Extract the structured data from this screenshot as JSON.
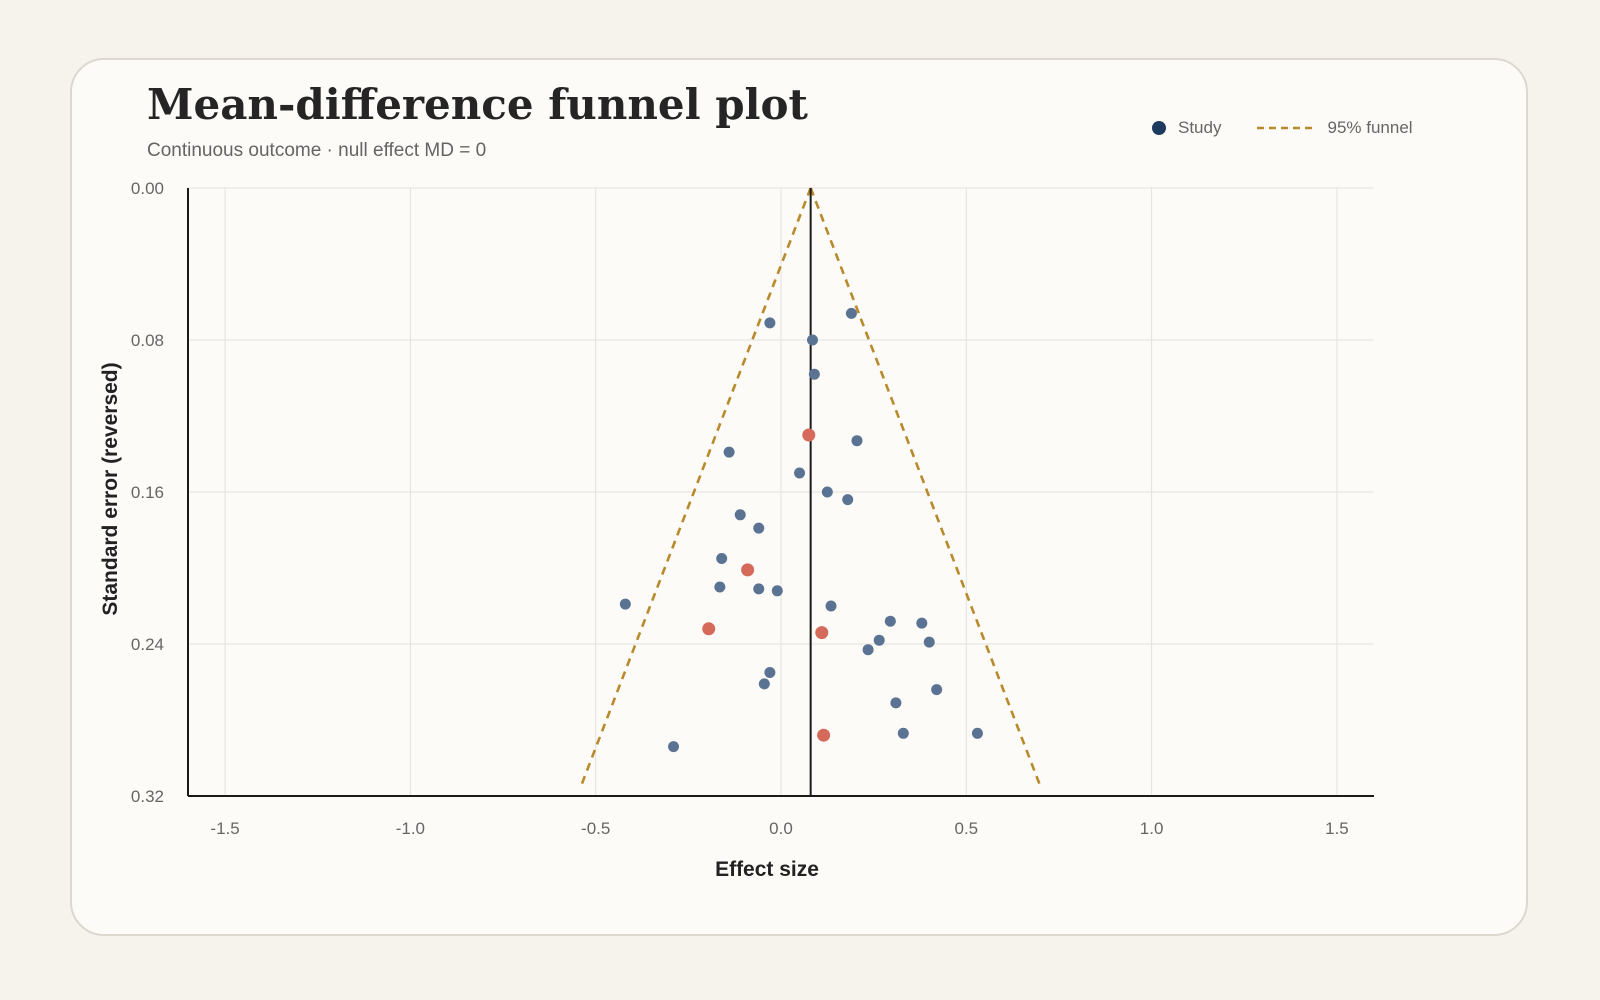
{
  "chart_data": {
    "type": "scatter",
    "title": "Mean-difference funnel plot",
    "subtitle": "Continuous outcome · null effect MD = 0",
    "xlabel": "Effect size",
    "ylabel": "Standard error (reversed)",
    "xlim": [
      -1.6,
      1.6
    ],
    "ylim": [
      0,
      0.32
    ],
    "y_reversed": true,
    "grid": true,
    "legend_position": "top-right",
    "x_ticks": [
      "-1.5",
      "-1.0",
      "-0.5",
      "0.0",
      "0.5",
      "1.0",
      "1.5"
    ],
    "x_tick_values": [
      -1.5,
      -1.0,
      -0.5,
      0.0,
      0.5,
      1.0,
      1.5
    ],
    "y_ticks": [
      "0.00",
      "0.08",
      "0.16",
      "0.24",
      "0.32"
    ],
    "y_tick_values": [
      0,
      0.08,
      0.16,
      0.24,
      0.32
    ],
    "pooled_effect": 0.08,
    "funnel": {
      "apex": [
        0.08,
        0
      ],
      "left_base": [
        -0.54,
        0.315
      ],
      "right_base": [
        0.7,
        0.315
      ]
    },
    "series": [
      {
        "name": "Study",
        "color": "#5b7393",
        "points": [
          [
            -0.03,
            0.071
          ],
          [
            0.19,
            0.066
          ],
          [
            0.085,
            0.08
          ],
          [
            0.09,
            0.098
          ],
          [
            0.205,
            0.133
          ],
          [
            -0.14,
            0.139
          ],
          [
            0.05,
            0.15
          ],
          [
            0.125,
            0.16
          ],
          [
            0.18,
            0.164
          ],
          [
            -0.11,
            0.172
          ],
          [
            -0.06,
            0.179
          ],
          [
            -0.16,
            0.195
          ],
          [
            -0.165,
            0.21
          ],
          [
            -0.06,
            0.211
          ],
          [
            -0.01,
            0.212
          ],
          [
            -0.42,
            0.219
          ],
          [
            0.135,
            0.22
          ],
          [
            0.295,
            0.228
          ],
          [
            0.38,
            0.229
          ],
          [
            0.265,
            0.238
          ],
          [
            0.4,
            0.239
          ],
          [
            0.235,
            0.243
          ],
          [
            -0.03,
            0.255
          ],
          [
            -0.045,
            0.261
          ],
          [
            0.42,
            0.264
          ],
          [
            0.31,
            0.271
          ],
          [
            0.33,
            0.287
          ],
          [
            0.53,
            0.287
          ],
          [
            -0.29,
            0.294
          ]
        ]
      },
      {
        "color": "#d66a5a",
        "points": [
          [
            0.075,
            0.13
          ],
          [
            -0.09,
            0.201
          ],
          [
            -0.195,
            0.232
          ],
          [
            0.11,
            0.234
          ],
          [
            0.115,
            0.288
          ]
        ]
      }
    ]
  },
  "legend": {
    "study_label": "Study",
    "funnel_label": "95% funnel"
  },
  "colors": {
    "study": "#1f3a5f",
    "funnel": "#b88a2c",
    "axis": "#1a1a1a",
    "grid": "#e3e1dc"
  }
}
